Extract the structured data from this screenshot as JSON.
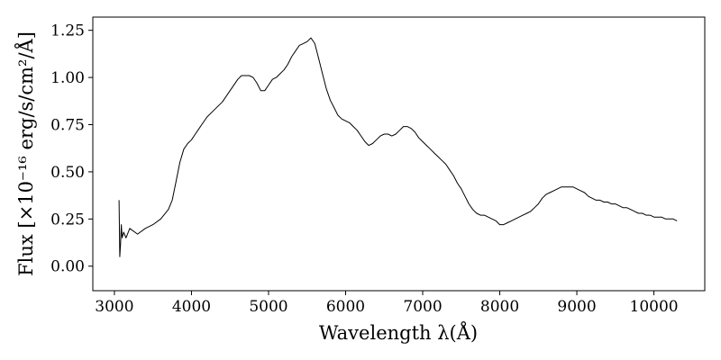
{
  "chart_data": {
    "type": "line",
    "xlabel": "Wavelength λ(Å)",
    "ylabel": "Flux [×10⁻¹⁶ erg/s/cm²/Å]",
    "xlim": [
      2720,
      10660
    ],
    "ylim": [
      -0.13,
      1.32
    ],
    "x_ticks": [
      3000,
      4000,
      5000,
      6000,
      7000,
      8000,
      9000,
      10000
    ],
    "x_tick_labels": [
      "3000",
      "4000",
      "5000",
      "6000",
      "7000",
      "8000",
      "9000",
      "10000"
    ],
    "y_ticks": [
      0.0,
      0.25,
      0.5,
      0.75,
      1.0,
      1.25
    ],
    "y_tick_labels": [
      "0.00",
      "0.25",
      "0.50",
      "0.75",
      "1.00",
      "1.25"
    ],
    "grid": false,
    "legend": "none",
    "line_color": "#000000",
    "series": [
      {
        "x": [
          3060,
          3070,
          3080,
          3090,
          3100,
          3120,
          3150,
          3200,
          3300,
          3400,
          3500,
          3600,
          3700,
          3750,
          3800,
          3850,
          3900,
          3950,
          4000,
          4050,
          4100,
          4150,
          4200,
          4300,
          4400,
          4500,
          4600,
          4650,
          4700,
          4750,
          4800,
          4850,
          4900,
          4950,
          5000,
          5050,
          5100,
          5150,
          5200,
          5250,
          5300,
          5350,
          5400,
          5450,
          5500,
          5550,
          5600,
          5650,
          5700,
          5750,
          5800,
          5850,
          5900,
          5950,
          6000,
          6050,
          6100,
          6150,
          6200,
          6250,
          6300,
          6350,
          6400,
          6450,
          6500,
          6550,
          6600,
          6650,
          6700,
          6750,
          6800,
          6850,
          6900,
          6950,
          7000,
          7050,
          7100,
          7150,
          7200,
          7250,
          7300,
          7350,
          7400,
          7450,
          7500,
          7550,
          7600,
          7650,
          7700,
          7750,
          7800,
          7850,
          7900,
          7950,
          8000,
          8050,
          8100,
          8150,
          8200,
          8250,
          8300,
          8350,
          8400,
          8450,
          8500,
          8550,
          8600,
          8650,
          8700,
          8750,
          8800,
          8850,
          8900,
          8950,
          9000,
          9050,
          9100,
          9150,
          9200,
          9250,
          9300,
          9350,
          9400,
          9450,
          9500,
          9550,
          9600,
          9650,
          9700,
          9750,
          9800,
          9850,
          9900,
          9950,
          10000,
          10050,
          10100,
          10150,
          10200,
          10250,
          10300
        ],
        "y": [
          0.35,
          0.05,
          0.12,
          0.22,
          0.15,
          0.18,
          0.15,
          0.2,
          0.17,
          0.2,
          0.22,
          0.25,
          0.3,
          0.35,
          0.45,
          0.55,
          0.62,
          0.65,
          0.67,
          0.7,
          0.73,
          0.76,
          0.79,
          0.83,
          0.87,
          0.93,
          0.99,
          1.01,
          1.01,
          1.01,
          1.0,
          0.97,
          0.93,
          0.93,
          0.96,
          0.99,
          1.0,
          1.02,
          1.04,
          1.07,
          1.11,
          1.14,
          1.17,
          1.18,
          1.19,
          1.21,
          1.18,
          1.1,
          1.02,
          0.94,
          0.88,
          0.84,
          0.8,
          0.78,
          0.77,
          0.76,
          0.74,
          0.72,
          0.69,
          0.66,
          0.64,
          0.65,
          0.67,
          0.69,
          0.7,
          0.7,
          0.69,
          0.7,
          0.72,
          0.74,
          0.74,
          0.73,
          0.71,
          0.68,
          0.66,
          0.64,
          0.62,
          0.6,
          0.58,
          0.56,
          0.54,
          0.51,
          0.48,
          0.44,
          0.41,
          0.37,
          0.33,
          0.3,
          0.28,
          0.27,
          0.27,
          0.26,
          0.25,
          0.24,
          0.22,
          0.22,
          0.23,
          0.24,
          0.25,
          0.26,
          0.27,
          0.28,
          0.29,
          0.31,
          0.33,
          0.36,
          0.38,
          0.39,
          0.4,
          0.41,
          0.42,
          0.42,
          0.42,
          0.42,
          0.41,
          0.4,
          0.39,
          0.37,
          0.36,
          0.35,
          0.35,
          0.34,
          0.34,
          0.33,
          0.33,
          0.32,
          0.31,
          0.31,
          0.3,
          0.29,
          0.28,
          0.28,
          0.27,
          0.27,
          0.26,
          0.26,
          0.26,
          0.25,
          0.25,
          0.25,
          0.24
        ]
      }
    ]
  }
}
